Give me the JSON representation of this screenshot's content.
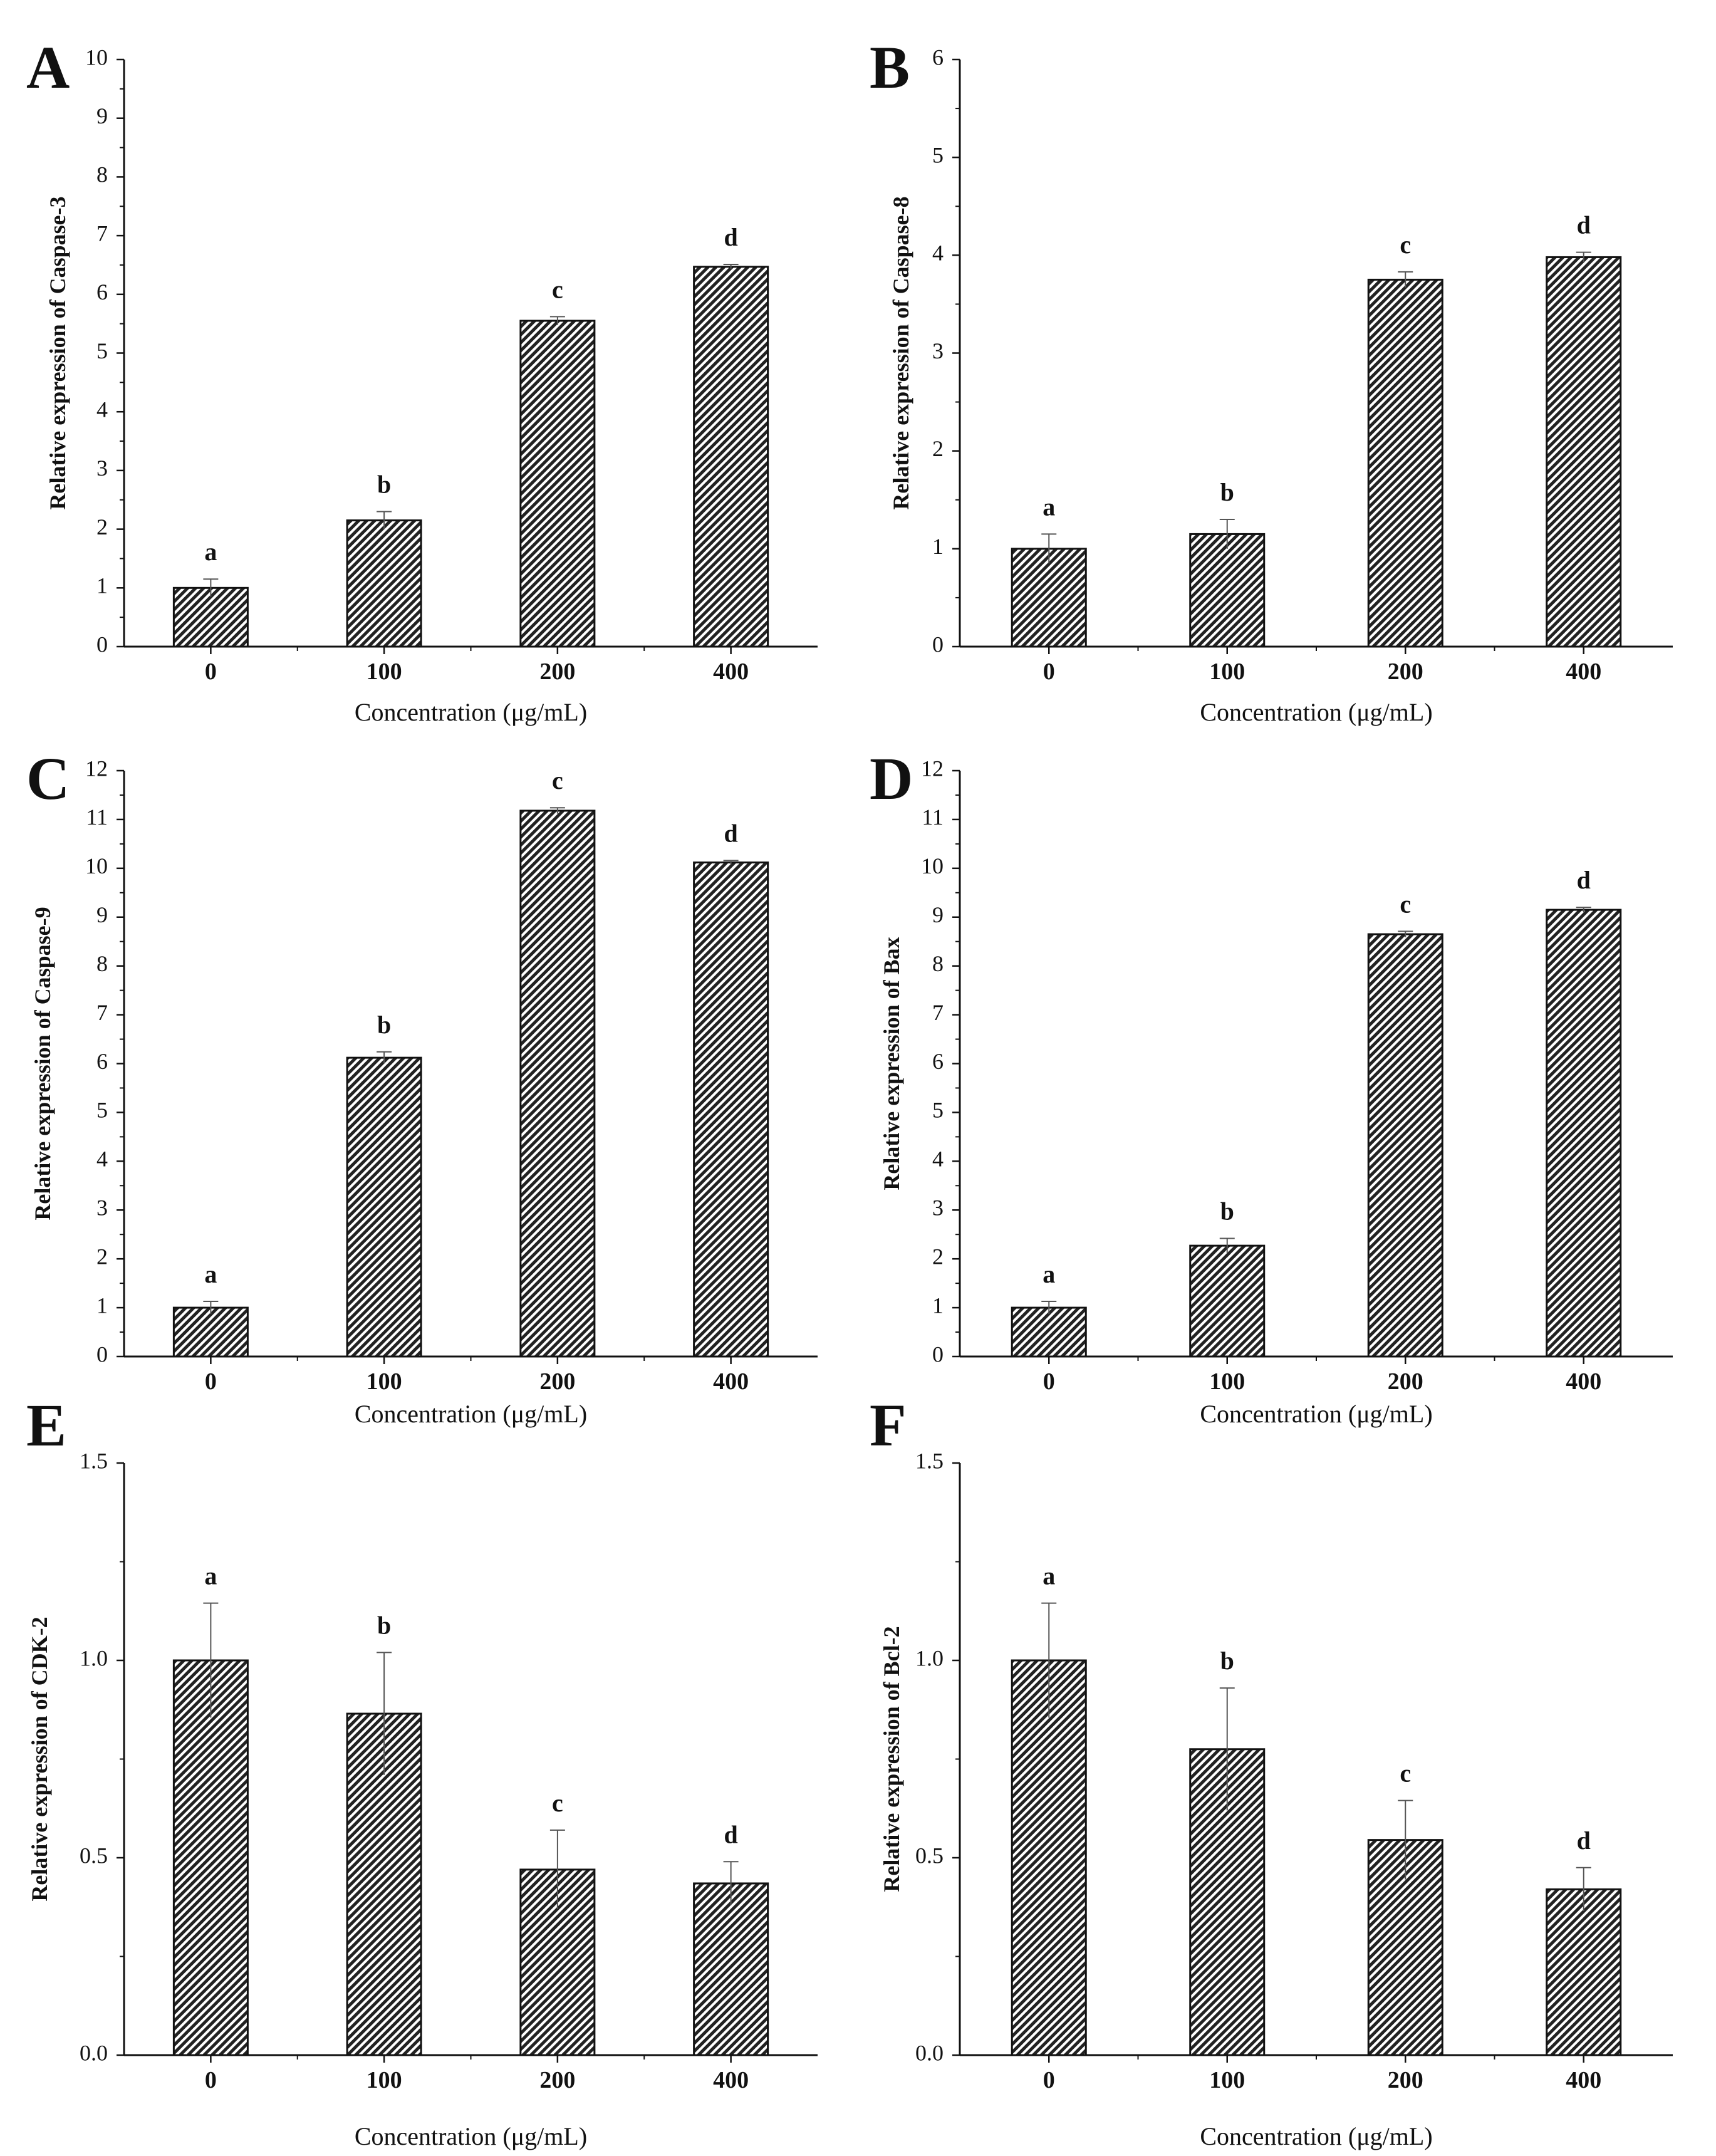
{
  "figure": {
    "description": "Six-panel bar chart figure of relative gene expression versus concentration"
  },
  "chart_data": [
    {
      "panel": "A",
      "type": "bar",
      "categories": [
        "0",
        "100",
        "200",
        "400"
      ],
      "values": [
        1.0,
        2.15,
        5.55,
        6.47
      ],
      "errors": [
        0.15,
        0.15,
        0.07,
        0.04
      ],
      "significance": [
        "a",
        "b",
        "c",
        "d"
      ],
      "xlabel": "Concentration (μg/mL)",
      "ylabel": "Relative expression of Caspase-3",
      "ylim": [
        0,
        10
      ],
      "yticks": [
        "0",
        "1",
        "2",
        "3",
        "4",
        "5",
        "6",
        "7",
        "8",
        "9",
        "10"
      ]
    },
    {
      "panel": "B",
      "type": "bar",
      "categories": [
        "0",
        "100",
        "200",
        "400"
      ],
      "values": [
        1.0,
        1.15,
        3.75,
        3.98
      ],
      "errors": [
        0.15,
        0.15,
        0.08,
        0.05
      ],
      "significance": [
        "a",
        "b",
        "c",
        "d"
      ],
      "xlabel": "Concentration (μg/mL)",
      "ylabel": "Relative expression of Caspase-8",
      "ylim": [
        0,
        6
      ],
      "yticks": [
        "0",
        "1",
        "2",
        "3",
        "4",
        "5",
        "6"
      ]
    },
    {
      "panel": "C",
      "type": "bar",
      "categories": [
        "0",
        "100",
        "200",
        "400"
      ],
      "values": [
        1.0,
        6.12,
        11.18,
        10.12
      ],
      "errors": [
        0.13,
        0.12,
        0.06,
        0.04
      ],
      "significance": [
        "a",
        "b",
        "c",
        "d"
      ],
      "xlabel": "Concentration (μg/mL)",
      "ylabel": "Relative expression of Caspase-9",
      "ylim": [
        0,
        12
      ],
      "yticks": [
        "0",
        "1",
        "2",
        "3",
        "4",
        "5",
        "6",
        "7",
        "8",
        "9",
        "10",
        "11",
        "12"
      ]
    },
    {
      "panel": "D",
      "type": "bar",
      "categories": [
        "0",
        "100",
        "200",
        "400"
      ],
      "values": [
        1.0,
        2.27,
        8.65,
        9.15
      ],
      "errors": [
        0.13,
        0.15,
        0.06,
        0.05
      ],
      "significance": [
        "a",
        "b",
        "c",
        "d"
      ],
      "xlabel": "Concentration (μg/mL)",
      "ylabel": "Relative expression of  Bax",
      "ylim": [
        0,
        12
      ],
      "yticks": [
        "0",
        "1",
        "2",
        "3",
        "4",
        "5",
        "6",
        "7",
        "8",
        "9",
        "10",
        "11",
        "12"
      ]
    },
    {
      "panel": "E",
      "type": "bar",
      "categories": [
        "0",
        "100",
        "200",
        "400"
      ],
      "values": [
        1.0,
        0.865,
        0.47,
        0.435
      ],
      "errors": [
        0.145,
        0.155,
        0.1,
        0.055
      ],
      "significance": [
        "a",
        "b",
        "c",
        "d"
      ],
      "xlabel": "Concentration (μg/mL)",
      "ylabel": "Relative expression of CDK-2",
      "ylim": [
        0,
        1.5
      ],
      "yticks": [
        "0.0",
        "0.5",
        "1.0",
        "1.5"
      ]
    },
    {
      "panel": "F",
      "type": "bar",
      "categories": [
        "0",
        "100",
        "200",
        "400"
      ],
      "values": [
        1.0,
        0.775,
        0.545,
        0.42
      ],
      "errors": [
        0.145,
        0.155,
        0.1,
        0.055
      ],
      "significance": [
        "a",
        "b",
        "c",
        "d"
      ],
      "xlabel": "Concentration (μg/mL)",
      "ylabel": "Relative expression of Bcl-2",
      "ylim": [
        0,
        1.5
      ],
      "yticks": [
        "0.0",
        "0.5",
        "1.0",
        "1.5"
      ]
    }
  ]
}
